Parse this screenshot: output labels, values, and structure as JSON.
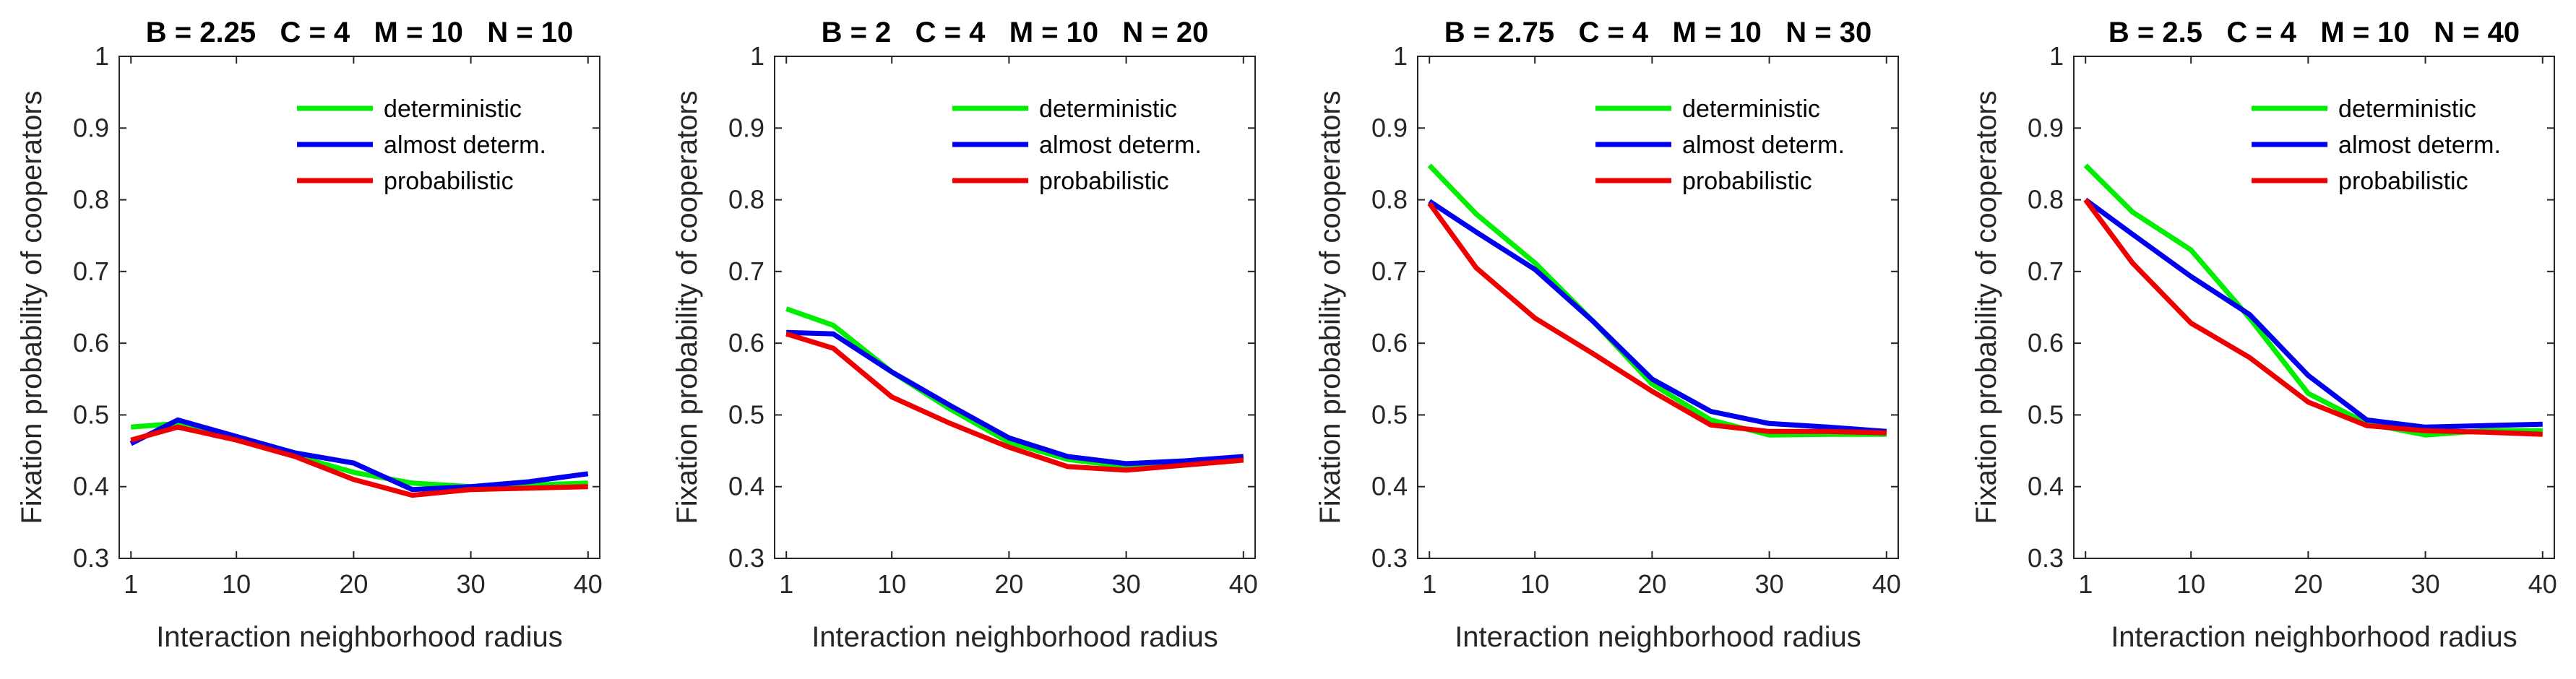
{
  "figure": {
    "xlabel": "Interaction neighborhood radius",
    "ylabel": "Fixation probability of cooperators"
  },
  "chart_data": [
    {
      "type": "line",
      "title": "B = 2.25   C = 4   M = 10   N = 10",
      "xlabel": "Interaction neighborhood radius",
      "ylabel": "Fixation probability of cooperators",
      "xlim": [
        0,
        41
      ],
      "ylim": [
        0.3,
        1
      ],
      "xticks": [
        1,
        10,
        20,
        30,
        40
      ],
      "yticks": [
        0.3,
        0.4,
        0.5,
        0.6,
        0.7,
        0.8,
        0.9,
        1
      ],
      "x": [
        1,
        5,
        10,
        15,
        20,
        25,
        30,
        35,
        40
      ],
      "legend_position": "top-right",
      "series": [
        {
          "name": "deterministic",
          "color": "#00ee00",
          "values": [
            0.483,
            0.488,
            0.468,
            0.443,
            0.42,
            0.405,
            0.4,
            0.402,
            0.405
          ]
        },
        {
          "name": "almost determ.",
          "color": "#0000ee",
          "values": [
            0.46,
            0.493,
            0.47,
            0.447,
            0.433,
            0.396,
            0.4,
            0.407,
            0.418
          ]
        },
        {
          "name": "probabilistic",
          "color": "#ee0000",
          "values": [
            0.465,
            0.483,
            0.465,
            0.442,
            0.41,
            0.388,
            0.396,
            0.398,
            0.4
          ]
        }
      ]
    },
    {
      "type": "line",
      "title": "B = 2   C = 4   M = 10   N = 20",
      "xlabel": "Interaction neighborhood radius",
      "ylabel": "Fixation probability of cooperators",
      "xlim": [
        0,
        41
      ],
      "ylim": [
        0.3,
        1
      ],
      "xticks": [
        1,
        10,
        20,
        30,
        40
      ],
      "yticks": [
        0.3,
        0.4,
        0.5,
        0.6,
        0.7,
        0.8,
        0.9,
        1
      ],
      "x": [
        1,
        5,
        10,
        15,
        20,
        25,
        30,
        35,
        40
      ],
      "legend_position": "top-right",
      "series": [
        {
          "name": "deterministic",
          "color": "#00ee00",
          "values": [
            0.648,
            0.625,
            0.56,
            0.508,
            0.462,
            0.438,
            0.428,
            0.432,
            0.438
          ]
        },
        {
          "name": "almost determ.",
          "color": "#0000ee",
          "values": [
            0.615,
            0.613,
            0.56,
            0.513,
            0.468,
            0.442,
            0.432,
            0.436,
            0.442
          ]
        },
        {
          "name": "probabilistic",
          "color": "#ee0000",
          "values": [
            0.613,
            0.593,
            0.525,
            0.488,
            0.455,
            0.428,
            0.423,
            0.43,
            0.437
          ]
        }
      ]
    },
    {
      "type": "line",
      "title": "B = 2.75   C = 4   M = 10   N = 30",
      "xlabel": "Interaction neighborhood radius",
      "ylabel": "Fixation probability of cooperators",
      "xlim": [
        0,
        41
      ],
      "ylim": [
        0.3,
        1
      ],
      "xticks": [
        1,
        10,
        20,
        30,
        40
      ],
      "yticks": [
        0.3,
        0.4,
        0.5,
        0.6,
        0.7,
        0.8,
        0.9,
        1
      ],
      "x": [
        1,
        5,
        10,
        15,
        20,
        25,
        30,
        35,
        40
      ],
      "legend_position": "top-right",
      "series": [
        {
          "name": "deterministic",
          "color": "#00ee00",
          "values": [
            0.848,
            0.78,
            0.712,
            0.63,
            0.543,
            0.493,
            0.472,
            0.473,
            0.473
          ]
        },
        {
          "name": "almost determ.",
          "color": "#0000ee",
          "values": [
            0.798,
            0.755,
            0.703,
            0.63,
            0.55,
            0.505,
            0.488,
            0.483,
            0.477
          ]
        },
        {
          "name": "probabilistic",
          "color": "#ee0000",
          "values": [
            0.795,
            0.705,
            0.635,
            0.585,
            0.533,
            0.486,
            0.477,
            0.477,
            0.475
          ]
        }
      ]
    },
    {
      "type": "line",
      "title": "B = 2.5   C = 4   M = 10   N = 40",
      "xlabel": "Interaction neighborhood radius",
      "ylabel": "Fixation probability of cooperators",
      "xlim": [
        0,
        41
      ],
      "ylim": [
        0.3,
        1
      ],
      "xticks": [
        1,
        10,
        20,
        30,
        40
      ],
      "yticks": [
        0.3,
        0.4,
        0.5,
        0.6,
        0.7,
        0.8,
        0.9,
        1
      ],
      "x": [
        1,
        5,
        10,
        15,
        20,
        25,
        30,
        35,
        40
      ],
      "legend_position": "top-right",
      "series": [
        {
          "name": "deterministic",
          "color": "#00ee00",
          "values": [
            0.848,
            0.783,
            0.73,
            0.635,
            0.53,
            0.488,
            0.472,
            0.478,
            0.478
          ]
        },
        {
          "name": "almost determ.",
          "color": "#0000ee",
          "values": [
            0.8,
            0.752,
            0.693,
            0.64,
            0.555,
            0.493,
            0.483,
            0.485,
            0.487
          ]
        },
        {
          "name": "probabilistic",
          "color": "#ee0000",
          "values": [
            0.8,
            0.712,
            0.628,
            0.58,
            0.518,
            0.485,
            0.478,
            0.476,
            0.473
          ]
        }
      ]
    }
  ]
}
